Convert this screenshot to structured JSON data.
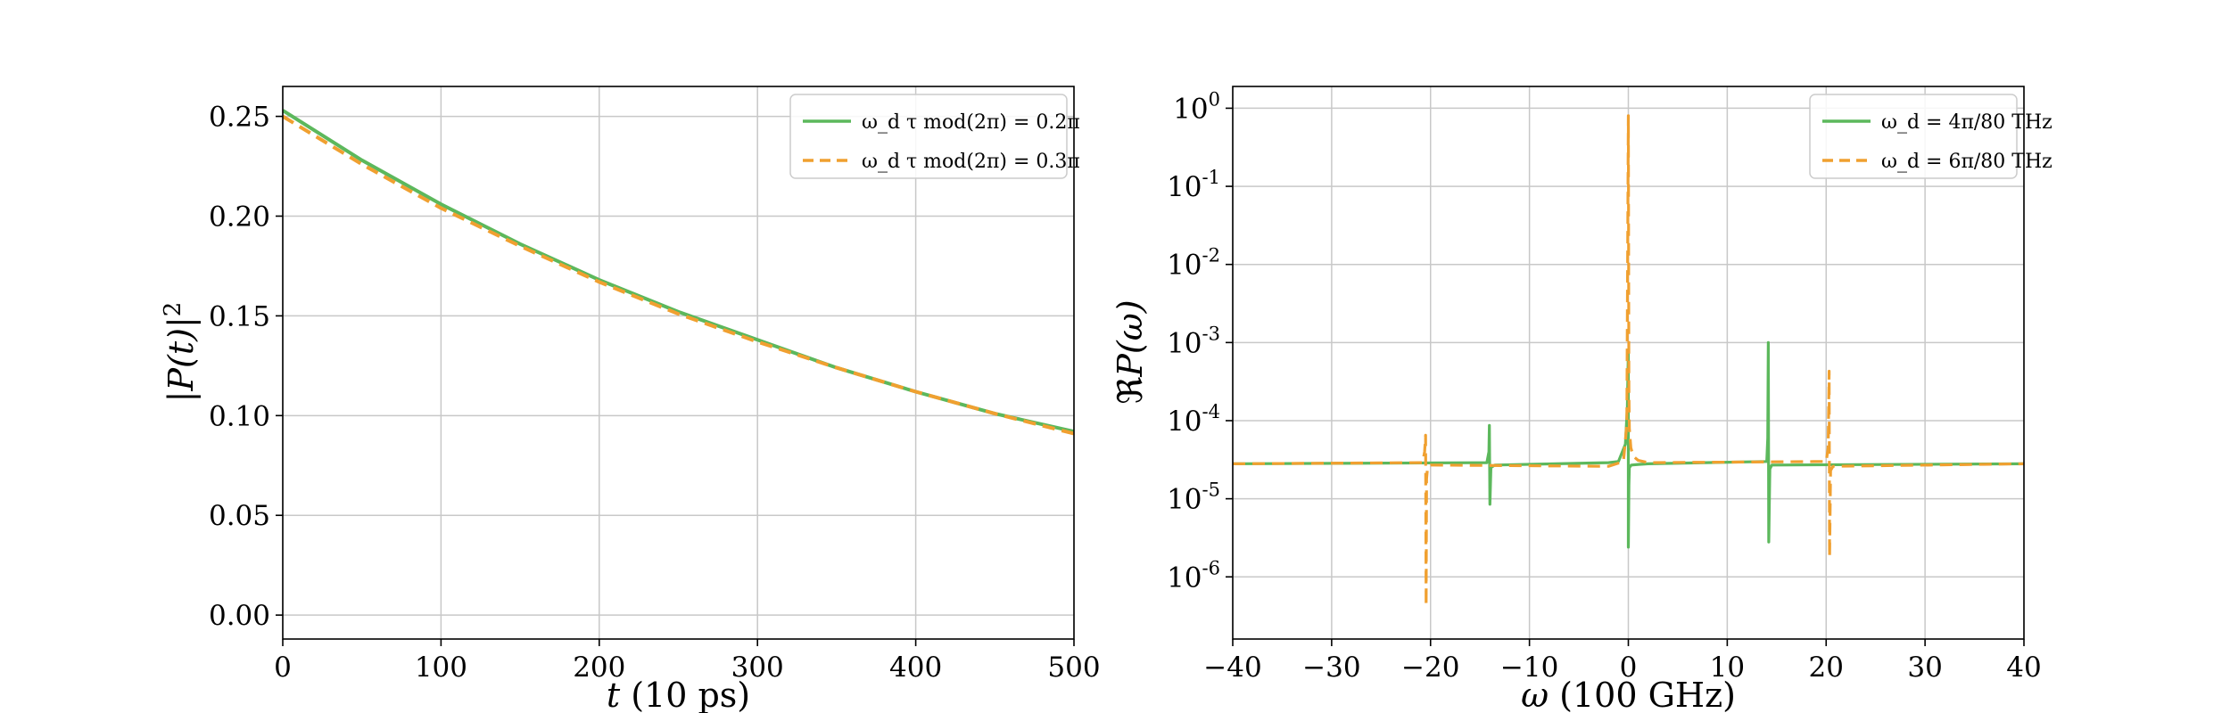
{
  "colors": {
    "green": "#5cb85c",
    "orange": "#f0a030",
    "grid": "#c8c8c8"
  },
  "chart_data": [
    {
      "type": "line",
      "xlabel": "t (10 ps)",
      "ylabel": "|P(t)|²",
      "xlim": [
        0,
        500
      ],
      "ylim": [
        -0.012,
        0.265
      ],
      "xticks": [
        0,
        100,
        200,
        300,
        400,
        500
      ],
      "yticks": [
        0.0,
        0.05,
        0.1,
        0.15,
        0.2,
        0.25
      ],
      "xtick_labels": [
        "0",
        "100",
        "200",
        "300",
        "400",
        "500"
      ],
      "ytick_labels": [
        "0.00",
        "0.05",
        "0.10",
        "0.15",
        "0.20",
        "0.25"
      ],
      "grid": true,
      "legend_position": "top-right",
      "series": [
        {
          "name": "ω_d τ mod(2π) = 0.2π",
          "style": "solid",
          "color": "#5cb85c",
          "x": [
            0,
            50,
            100,
            150,
            200,
            250,
            300,
            350,
            400,
            450,
            500
          ],
          "y": [
            0.253,
            0.228,
            0.206,
            0.186,
            0.168,
            0.152,
            0.138,
            0.124,
            0.112,
            0.101,
            0.092
          ]
        },
        {
          "name": "ω_d τ mod(2π) = 0.3π",
          "style": "dashed",
          "color": "#f0a030",
          "x": [
            0,
            50,
            100,
            150,
            200,
            250,
            300,
            350,
            400,
            450,
            500
          ],
          "y": [
            0.25,
            0.226,
            0.204,
            0.185,
            0.167,
            0.151,
            0.137,
            0.124,
            0.112,
            0.101,
            0.091
          ]
        }
      ]
    },
    {
      "type": "line",
      "xlabel": "ω (100 GHz)",
      "ylabel": "ℜP(ω)",
      "xlim": [
        -40,
        40
      ],
      "ylim": [
        1.6e-07,
        1.9
      ],
      "yscale": "log",
      "xticks": [
        -40,
        -30,
        -20,
        -10,
        0,
        10,
        20,
        30,
        40
      ],
      "xtick_labels": [
        "−40",
        "−30",
        "−20",
        "−10",
        "0",
        "10",
        "20",
        "30",
        "40"
      ],
      "yticks": [
        -6,
        -5,
        -4,
        -3,
        -2,
        -1,
        0
      ],
      "ytick_labels": [
        "10",
        "10",
        "10",
        "10",
        "10",
        "10",
        "10"
      ],
      "ytick_exponents": [
        "-6",
        "-5",
        "-4",
        "-3",
        "-2",
        "-1",
        "0"
      ],
      "grid": true,
      "legend_position": "top-right",
      "series": [
        {
          "name": "ω_d = 4π/80 THz",
          "style": "solid",
          "color": "#5cb85c",
          "x": [
            -40,
            -14.3,
            -14.1,
            -14.05,
            -14.0,
            -13.9,
            -13.5,
            -2,
            -1,
            -0.3,
            -0.1,
            0,
            0,
            0.05,
            0.1,
            0.3,
            1,
            2,
            14.0,
            14.1,
            14.15,
            14.2,
            14.3,
            14.5,
            40
          ],
          "y": [
            2.8e-05,
            2.9e-05,
            4e-05,
            8.7e-05,
            8.5e-06,
            2.5e-05,
            2.7e-05,
            2.9e-05,
            3e-05,
            5e-05,
            0.00015,
            0.0008,
            2.4e-06,
            1.5e-05,
            2.5e-05,
            2.7e-05,
            2.75e-05,
            2.8e-05,
            3e-05,
            6e-05,
            0.001,
            2.8e-06,
            2.4e-05,
            2.7e-05,
            2.8e-05
          ]
        },
        {
          "name": "ω_d = 6π/80 THz",
          "style": "dashed",
          "color": "#f0a030",
          "x": [
            -40,
            -20.8,
            -20.6,
            -20.5,
            -20.45,
            -20.4,
            -20.3,
            -20.0,
            -2,
            -0.5,
            -0.15,
            0,
            0.05,
            0.1,
            0.25,
            0.5,
            1,
            2,
            20.0,
            20.2,
            20.3,
            20.35,
            20.45,
            20.7,
            40
          ],
          "y": [
            2.8e-05,
            2.9e-05,
            4e-05,
            6.5e-05,
            4.3e-07,
            1.8e-05,
            2.5e-05,
            2.7e-05,
            2.6e-05,
            3e-05,
            9e-05,
            0.8,
            0.00026,
            8e-05,
            4.5e-05,
            3.5e-05,
            3.1e-05,
            2.9e-05,
            3e-05,
            4.5e-05,
            0.00043,
            1.8e-06,
            2.3e-05,
            2.6e-05,
            2.8e-05
          ]
        }
      ]
    }
  ]
}
